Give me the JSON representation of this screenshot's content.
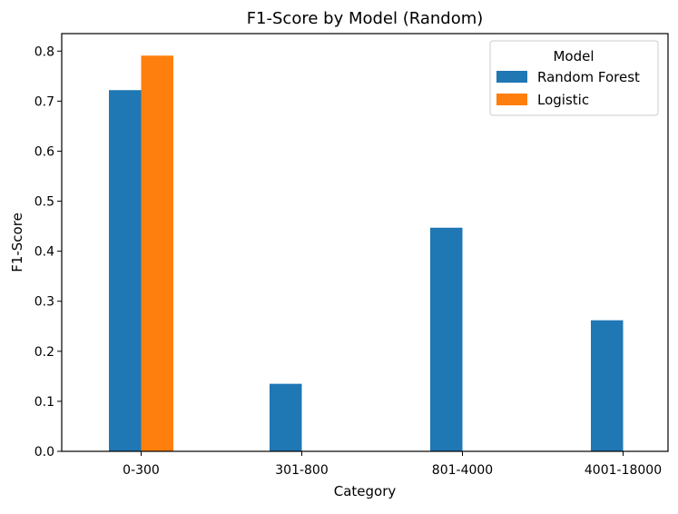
{
  "chart_data": {
    "type": "bar",
    "title": "F1-Score by Model (Random)",
    "xlabel": "Category",
    "ylabel": "F1-Score",
    "categories": [
      "0-300",
      "301-800",
      "801-4000",
      "4001-18000"
    ],
    "series": [
      {
        "name": "Random Forest",
        "color": "#1f77b4",
        "values": [
          0.722,
          0.135,
          0.447,
          0.262
        ]
      },
      {
        "name": "Logistic",
        "color": "#ff7f0e",
        "values": [
          0.791,
          0,
          0,
          0
        ]
      }
    ],
    "ylim": [
      0.0,
      0.835
    ],
    "yticks": [
      "0.0",
      "0.1",
      "0.2",
      "0.3",
      "0.4",
      "0.5",
      "0.6",
      "0.7",
      "0.8"
    ],
    "legend": {
      "title": "Model",
      "placement": "top-right"
    },
    "grid": false
  }
}
